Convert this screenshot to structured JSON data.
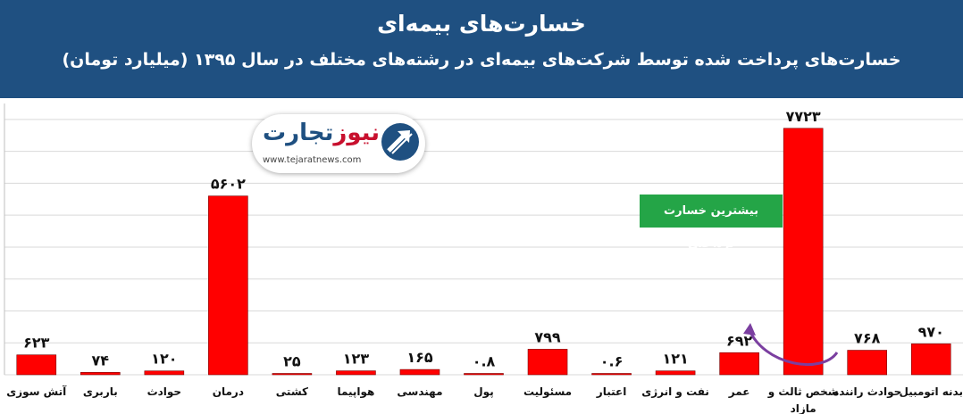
{
  "header": {
    "title": "خسارت‌های بیمه‌ای",
    "subtitle": "خسارت‌های پرداخت شده توسط شرکت‌های بیمه‌ای در رشته‌های مختلف در سال ۱۳۹۵ (میلیارد تومان)"
  },
  "logo": {
    "name_red": "نیوز",
    "name_blue": "تجارت",
    "url": "www.tejaratnews.com"
  },
  "callout": {
    "text": "بیشترین خسارت پرداختی"
  },
  "colors": {
    "header": "#1f5081",
    "bar": "#ff0000",
    "callout": "#24a547",
    "arrow": "#7b3fa0"
  },
  "chart_data": {
    "type": "bar",
    "title": "خسارت‌های بیمه‌ای",
    "subtitle": "خسارت‌های پرداخت شده توسط شرکت‌های بیمه‌ای در رشته‌های مختلف در سال ۱۳۹۵ (میلیارد تومان)",
    "categories": [
      "آتش سوزی",
      "باربری",
      "حوادث",
      "درمان",
      "کشتی",
      "هواپیما",
      "مهندسی",
      "پول",
      "مسئولیت",
      "اعتبار",
      "نفت و انرژی",
      "عمر",
      "شخص ثالث و مازاد",
      "حوادث راننده",
      "بدنه اتومبیل"
    ],
    "values": [
      623,
      74,
      120,
      5602,
      25,
      123,
      165,
      0.8,
      799,
      0.6,
      121,
      692,
      7723,
      768,
      970
    ],
    "value_labels": [
      "۶۲۳",
      "۷۴",
      "۱۲۰",
      "۵۶۰۲",
      "۲۵",
      "۱۲۳",
      "۱۶۵",
      "۰.۸",
      "۷۹۹",
      "۰.۶",
      "۱۲۱",
      "۶۹۲",
      "۷۷۲۳",
      "۷۶۸",
      "۹۷۰"
    ],
    "xlabel": "",
    "ylabel": "",
    "ylim": [
      0,
      8500
    ],
    "grid": true,
    "highlight_index": 12
  }
}
